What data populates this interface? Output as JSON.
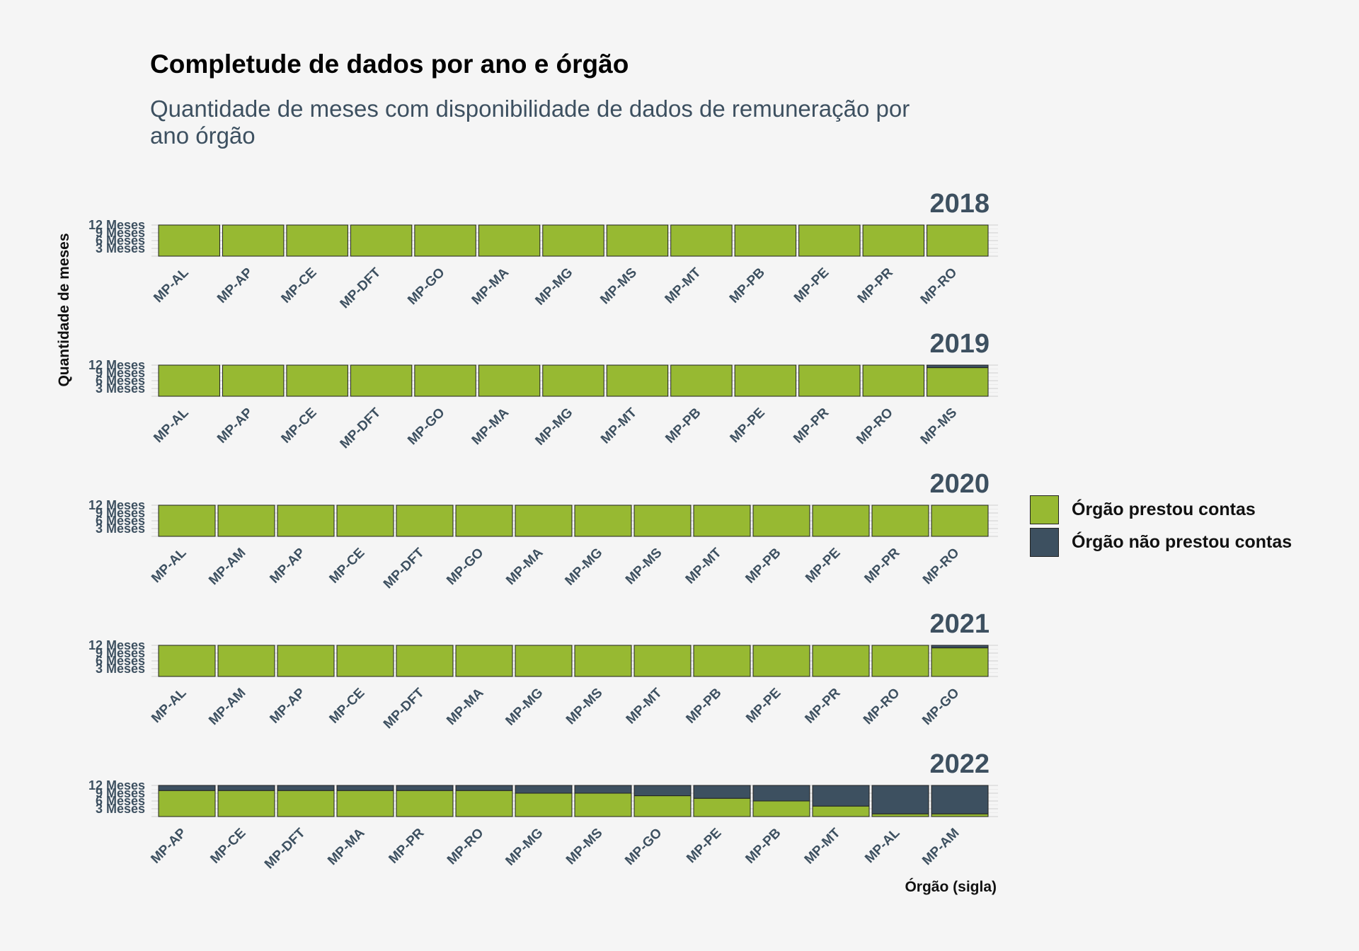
{
  "colors": {
    "background": "#f5f5f5",
    "reported": "#97b932",
    "not_reported": "#3d5060",
    "title": "#000000",
    "subtitle": "#3d5060",
    "tick_labels": "#3d5060"
  },
  "chart_data": {
    "type": "bar",
    "stacked": true,
    "facet_by": "year",
    "title": "Completude de dados por ano e órgão",
    "subtitle": "Quantidade de meses com disponibilidade de dados de remuneração por ano órgão",
    "xlabel": "Órgão (sigla)",
    "ylabel": "Quantidade de meses",
    "y_ticks": [
      3,
      6,
      9,
      12
    ],
    "y_tick_labels": [
      "3 Meses",
      "6 Meses",
      "9 Meses",
      "12 Meses"
    ],
    "ylim": [
      0,
      12
    ],
    "grid": true,
    "legend_position": "right",
    "legend": [
      {
        "key": "reported",
        "label": "Órgão prestou contas"
      },
      {
        "key": "not_reported",
        "label": "Órgão não prestou contas"
      }
    ],
    "series_keys": [
      "reported",
      "not_reported"
    ],
    "facets": [
      {
        "year": "2018",
        "categories": [
          "MP-AL",
          "MP-AP",
          "MP-CE",
          "MP-DFT",
          "MP-GO",
          "MP-MA",
          "MP-MG",
          "MP-MS",
          "MP-MT",
          "MP-PB",
          "MP-PE",
          "MP-PR",
          "MP-RO"
        ],
        "reported": [
          12,
          12,
          12,
          12,
          12,
          12,
          12,
          12,
          12,
          12,
          12,
          12,
          12
        ],
        "not_reported": [
          0,
          0,
          0,
          0,
          0,
          0,
          0,
          0,
          0,
          0,
          0,
          0,
          0
        ]
      },
      {
        "year": "2019",
        "categories": [
          "MP-AL",
          "MP-AP",
          "MP-CE",
          "MP-DFT",
          "MP-GO",
          "MP-MA",
          "MP-MG",
          "MP-MT",
          "MP-PB",
          "MP-PE",
          "MP-PR",
          "MP-RO",
          "MP-MS"
        ],
        "reported": [
          12,
          12,
          12,
          12,
          12,
          12,
          12,
          12,
          12,
          12,
          12,
          12,
          11
        ],
        "not_reported": [
          0,
          0,
          0,
          0,
          0,
          0,
          0,
          0,
          0,
          0,
          0,
          0,
          1
        ]
      },
      {
        "year": "2020",
        "categories": [
          "MP-AL",
          "MP-AM",
          "MP-AP",
          "MP-CE",
          "MP-DFT",
          "MP-GO",
          "MP-MA",
          "MP-MG",
          "MP-MS",
          "MP-MT",
          "MP-PB",
          "MP-PE",
          "MP-PR",
          "MP-RO"
        ],
        "reported": [
          12,
          12,
          12,
          12,
          12,
          12,
          12,
          12,
          12,
          12,
          12,
          12,
          12,
          12
        ],
        "not_reported": [
          0,
          0,
          0,
          0,
          0,
          0,
          0,
          0,
          0,
          0,
          0,
          0,
          0,
          0
        ]
      },
      {
        "year": "2021",
        "categories": [
          "MP-AL",
          "MP-AM",
          "MP-AP",
          "MP-CE",
          "MP-DFT",
          "MP-MA",
          "MP-MG",
          "MP-MS",
          "MP-MT",
          "MP-PB",
          "MP-PE",
          "MP-PR",
          "MP-RO",
          "MP-GO"
        ],
        "reported": [
          12,
          12,
          12,
          12,
          12,
          12,
          12,
          12,
          12,
          12,
          12,
          12,
          12,
          11
        ],
        "not_reported": [
          0,
          0,
          0,
          0,
          0,
          0,
          0,
          0,
          0,
          0,
          0,
          0,
          0,
          1
        ]
      },
      {
        "year": "2022",
        "categories": [
          "MP-AP",
          "MP-CE",
          "MP-DFT",
          "MP-MA",
          "MP-PR",
          "MP-RO",
          "MP-MG",
          "MP-MS",
          "MP-GO",
          "MP-PE",
          "MP-PB",
          "MP-MT",
          "MP-AL",
          "MP-AM"
        ],
        "reported": [
          10,
          10,
          10,
          10,
          10,
          10,
          9,
          9,
          8,
          7,
          6,
          4,
          1,
          1
        ],
        "not_reported": [
          2,
          2,
          2,
          2,
          2,
          2,
          3,
          3,
          4,
          5,
          6,
          8,
          11,
          11
        ]
      }
    ]
  }
}
